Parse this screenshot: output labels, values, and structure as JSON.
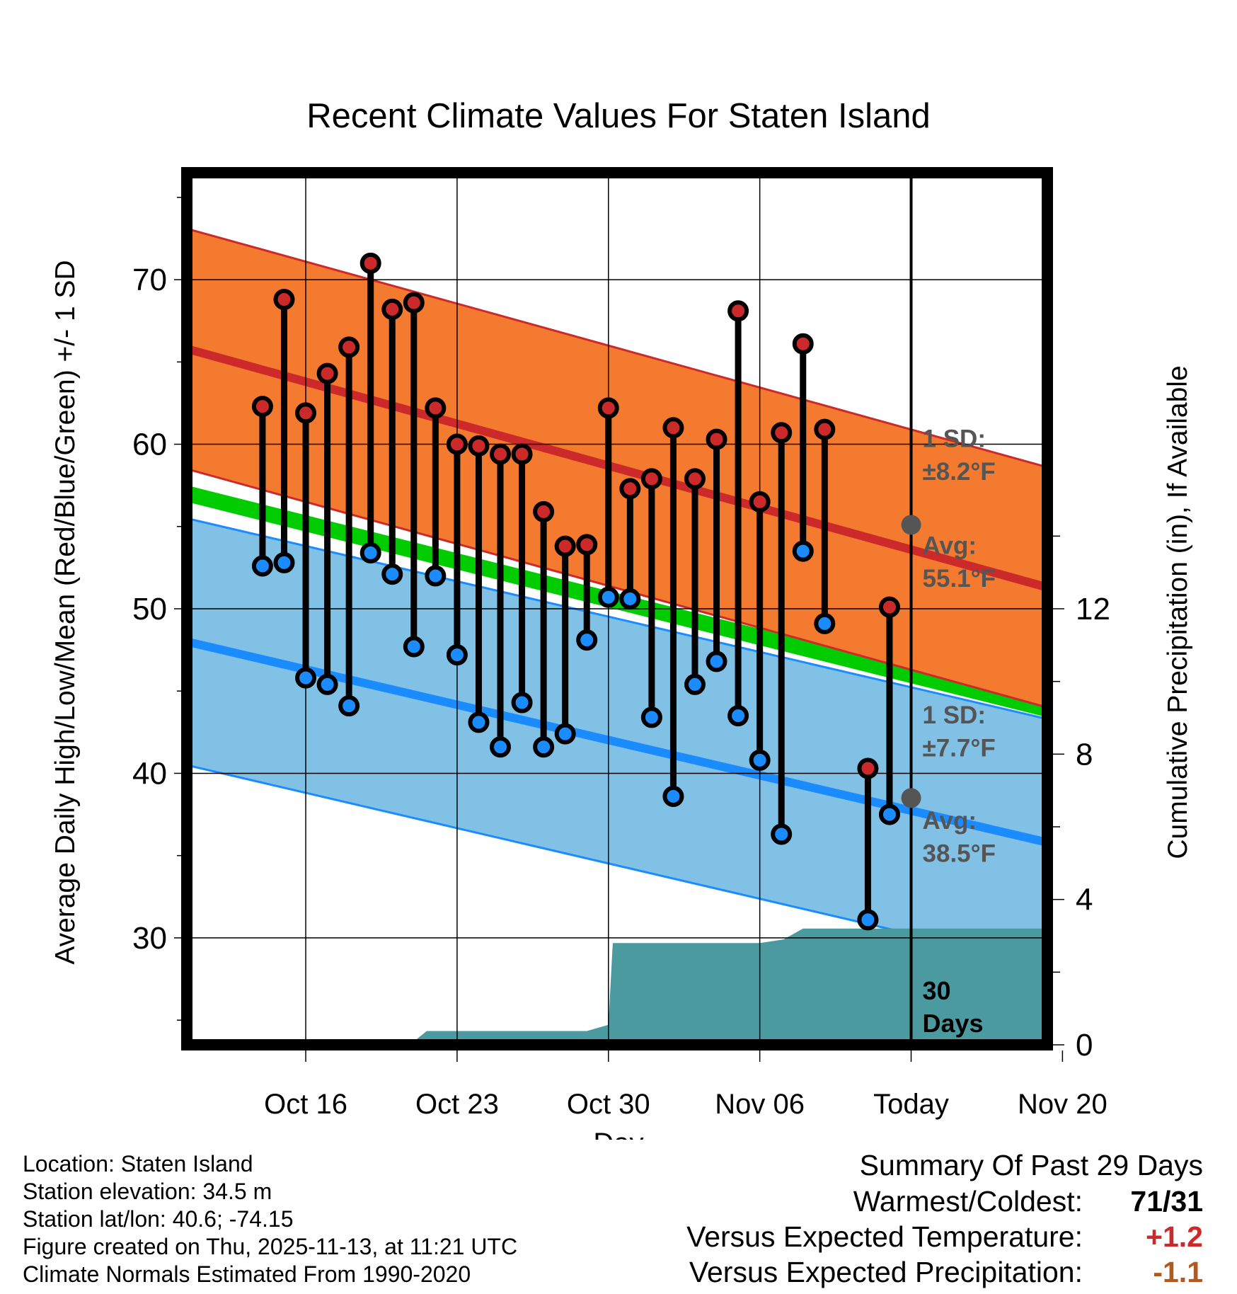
{
  "title": "Recent Climate Values For Staten Island",
  "colors": {
    "record_band": "#f47a30",
    "high_line": "#cc2a2a",
    "low_band": "#82c1e6",
    "low_line": "#1a8cff",
    "mean_band": "#00cc00",
    "precip": "#4a9aa0",
    "annotation": "#555555",
    "warm": "#cc2a2a",
    "cool": "#b05a1e"
  },
  "chart_data": {
    "type": "line",
    "xlabel": "Day",
    "ylabel": "Average Daily High/Low/Mean (Red/Blue/Green) +/- 1 SD",
    "ylabel_right": "Cumulative Precipitation (in), If Available",
    "x_domain_days": [
      -33.5,
      6.3
    ],
    "ylim": [
      23.5,
      76.5
    ],
    "yticks": [
      30,
      40,
      50,
      60,
      70
    ],
    "precip_ticks": [
      0,
      4,
      8,
      12
    ],
    "precip_range": [
      0,
      24
    ],
    "x_ticks": [
      {
        "label": "Oct 16",
        "day": -28
      },
      {
        "label": "Oct 23",
        "day": -21
      },
      {
        "label": "Oct 30",
        "day": -14
      },
      {
        "label": "Nov 06",
        "day": -7
      },
      {
        "label": "Today",
        "day": 0
      },
      {
        "label": "Nov 20",
        "day": 7
      }
    ],
    "normal_high": {
      "start": [
        -33.5,
        65.8
      ],
      "end": [
        6.3,
        51.3
      ],
      "sd": 7.3
    },
    "normal_low": {
      "start": [
        -33.5,
        48.0
      ],
      "end": [
        6.3,
        35.8
      ],
      "sd": 7.5
    },
    "normal_mean": {
      "start": [
        -33.5,
        57.0
      ],
      "end": [
        6.3,
        43.9
      ]
    },
    "series": [
      {
        "name": "Daily High",
        "values": [
          62.3,
          68.8,
          61.9,
          64.3,
          65.9,
          71.0,
          68.2,
          68.6,
          62.2,
          60.0,
          59.9,
          59.4,
          59.4,
          55.9,
          53.8,
          53.9,
          62.2,
          57.3,
          57.9,
          61.0,
          57.9,
          60.3,
          68.1,
          56.5,
          60.7,
          66.1,
          60.9,
          40.3,
          50.1
        ]
      },
      {
        "name": "Daily Low",
        "values": [
          52.6,
          52.8,
          45.8,
          45.4,
          44.1,
          53.4,
          52.1,
          47.7,
          52.0,
          47.2,
          43.1,
          41.6,
          44.3,
          41.6,
          42.4,
          48.1,
          50.7,
          50.6,
          43.4,
          38.6,
          45.4,
          46.8,
          43.5,
          40.8,
          36.3,
          53.5,
          49.1,
          31.1,
          37.5
        ]
      }
    ],
    "obs_days": [
      -30,
      -29,
      -28,
      -27,
      -26,
      -25,
      -24,
      -23,
      -22,
      -21,
      -20,
      -19,
      -18,
      -17,
      -16,
      -15,
      -14,
      -13,
      -12,
      -11,
      -10,
      -9,
      -8,
      -7,
      -6,
      -5,
      -4,
      -2,
      -1
    ],
    "precip_cumulative": {
      "x": [
        -33.5,
        -23.2,
        -22.4,
        -15.0,
        -14.0,
        -13.8,
        -7.0,
        -5.9,
        -5.0,
        6.3
      ],
      "y": [
        0,
        0,
        0.38,
        0.38,
        0.55,
        2.8,
        2.8,
        2.9,
        3.2,
        3.2
      ]
    },
    "annotations": [
      {
        "value_day": 0,
        "temp": 55.1
      },
      {
        "value_day": 0,
        "temp": 38.5
      }
    ]
  },
  "annotations": {
    "high_sd_label": "1 SD:",
    "high_sd_value": "±8.2°F",
    "high_avg_label": "Avg:",
    "high_avg_value": "55.1°F",
    "low_sd_label": "1 SD:",
    "low_sd_value": "±7.7°F",
    "low_avg_label": "Avg:",
    "low_avg_value": "38.5°F",
    "period_line1": "30",
    "period_line2": "Days"
  },
  "footer": {
    "location": "Location: Staten Island",
    "elevation": "Station elevation: 34.5 m",
    "latlon": "Station lat/lon: 40.6; -74.15",
    "created": "Figure created on Thu, 2025-11-13, at 11:21 UTC",
    "normals": "Climate Normals Estimated From 1990-2020"
  },
  "summary": {
    "title": "Summary Of Past 29 Days",
    "warmest_label": "Warmest/Coldest:",
    "warmest_value": "71/31",
    "temp_label": "Versus Expected Temperature:",
    "temp_value": "+1.2",
    "precip_label": "Versus Expected Precipitation:",
    "precip_value": "-1.1"
  }
}
